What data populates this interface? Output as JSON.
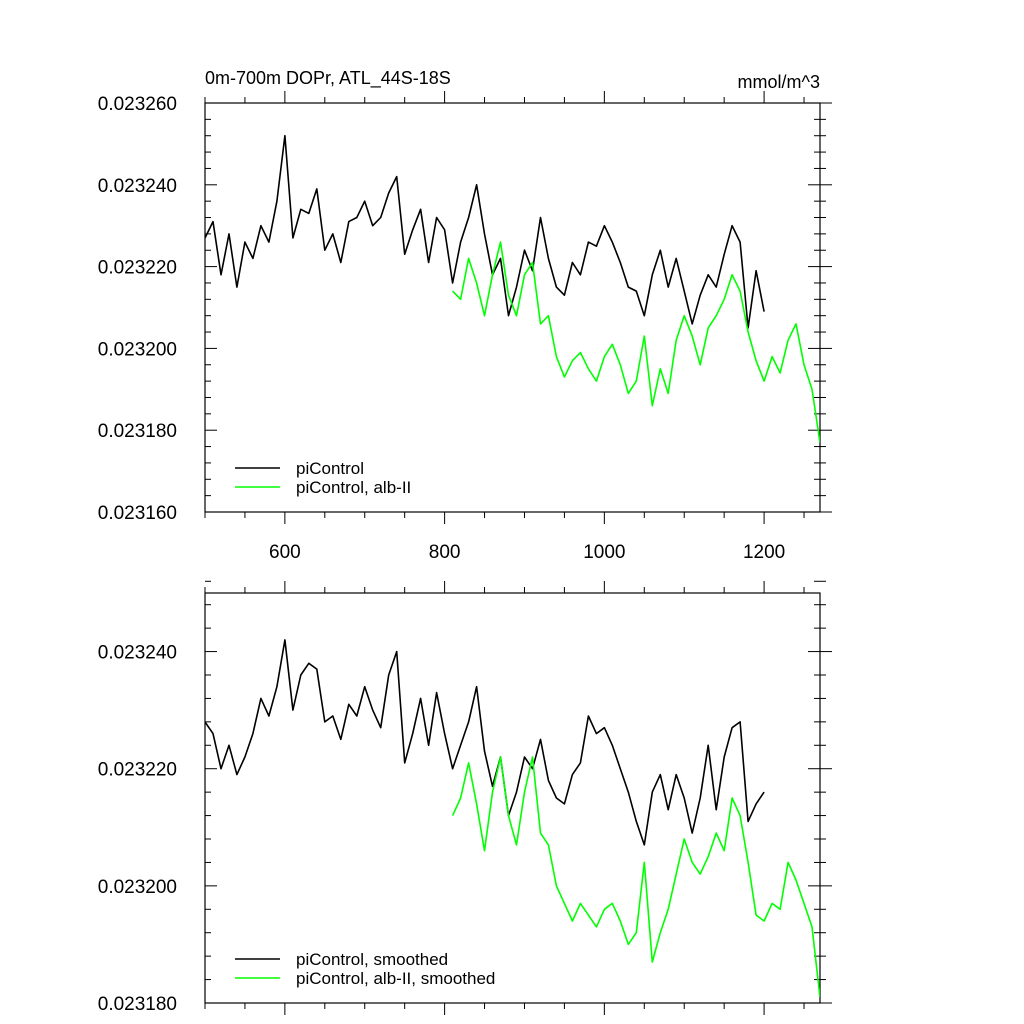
{
  "chart_data": [
    {
      "type": "line",
      "title": "0m-700m DOPr, ATL_44S-18S",
      "units": "mmol/m^3",
      "xlim": [
        500,
        1270
      ],
      "ylim": [
        0.02316,
        0.02326
      ],
      "xticks": [
        600,
        800,
        1000,
        1200
      ],
      "xtick_labels": [
        "600",
        "800",
        "1000",
        "1200"
      ],
      "yticks": [
        0.02316,
        0.02318,
        0.0232,
        0.02322,
        0.02324,
        0.02326
      ],
      "ytick_labels": [
        "0.023160",
        "0.023180",
        "0.023200",
        "0.023220",
        "0.023240",
        "0.023260"
      ],
      "legend_position": "bottom-left",
      "series": [
        {
          "name": "piControl",
          "color": "#000000",
          "x": [
            500,
            510,
            520,
            530,
            540,
            550,
            560,
            570,
            580,
            590,
            600,
            610,
            620,
            630,
            640,
            650,
            660,
            670,
            680,
            690,
            700,
            710,
            720,
            730,
            740,
            750,
            760,
            770,
            780,
            790,
            800,
            810,
            820,
            830,
            840,
            850,
            860,
            870,
            880,
            890,
            900,
            910,
            920,
            930,
            940,
            950,
            960,
            970,
            980,
            990,
            1000,
            1010,
            1020,
            1030,
            1040,
            1050,
            1060,
            1070,
            1080,
            1090,
            1100,
            1110,
            1120,
            1130,
            1140,
            1150,
            1160,
            1170,
            1180,
            1190,
            1200
          ],
          "y": [
            0.023227,
            0.023231,
            0.023218,
            0.023228,
            0.023215,
            0.023226,
            0.023222,
            0.02323,
            0.023226,
            0.023236,
            0.023252,
            0.023227,
            0.023234,
            0.023233,
            0.023239,
            0.023224,
            0.023228,
            0.023221,
            0.023231,
            0.023232,
            0.023236,
            0.02323,
            0.023232,
            0.023238,
            0.023242,
            0.023223,
            0.023229,
            0.023234,
            0.023221,
            0.023232,
            0.023229,
            0.023216,
            0.023226,
            0.023232,
            0.02324,
            0.023228,
            0.023218,
            0.023222,
            0.023208,
            0.023215,
            0.023224,
            0.023219,
            0.023232,
            0.023222,
            0.023215,
            0.023213,
            0.023221,
            0.023218,
            0.023226,
            0.023225,
            0.02323,
            0.023226,
            0.023221,
            0.023215,
            0.023214,
            0.023208,
            0.023218,
            0.023224,
            0.023215,
            0.023222,
            0.023214,
            0.023206,
            0.023213,
            0.023218,
            0.023215,
            0.023223,
            0.02323,
            0.023226,
            0.023205,
            0.023219,
            0.023209
          ]
        },
        {
          "name": "piControl, alb-II",
          "color": "#00ff00",
          "x": [
            810,
            820,
            830,
            840,
            850,
            860,
            870,
            880,
            890,
            900,
            910,
            920,
            930,
            940,
            950,
            960,
            970,
            980,
            990,
            1000,
            1010,
            1020,
            1030,
            1040,
            1050,
            1060,
            1070,
            1080,
            1090,
            1100,
            1110,
            1120,
            1130,
            1140,
            1150,
            1160,
            1170,
            1180,
            1190,
            1200,
            1210,
            1220,
            1230,
            1240,
            1250,
            1260,
            1270
          ],
          "y": [
            0.023214,
            0.023212,
            0.023222,
            0.023216,
            0.023208,
            0.023218,
            0.023226,
            0.023213,
            0.023208,
            0.023218,
            0.023221,
            0.023206,
            0.023208,
            0.023198,
            0.023193,
            0.023197,
            0.023199,
            0.023195,
            0.023192,
            0.023198,
            0.023201,
            0.023196,
            0.023189,
            0.023192,
            0.023203,
            0.023186,
            0.023195,
            0.023189,
            0.023202,
            0.023208,
            0.023203,
            0.023196,
            0.023205,
            0.023208,
            0.023212,
            0.023218,
            0.023214,
            0.023204,
            0.023197,
            0.023192,
            0.023198,
            0.023194,
            0.023202,
            0.023206,
            0.023196,
            0.02319,
            0.023177
          ]
        }
      ]
    },
    {
      "type": "line",
      "xlim": [
        500,
        1270
      ],
      "ylim": [
        0.02318,
        0.02325
      ],
      "xticks": [
        600,
        800,
        1000,
        1200
      ],
      "yticks": [
        0.02318,
        0.0232,
        0.02322,
        0.02324
      ],
      "ytick_labels": [
        "0.023180",
        "0.023200",
        "0.023220",
        "0.023240"
      ],
      "legend_position": "bottom-left",
      "series": [
        {
          "name": "piControl, smoothed",
          "color": "#000000",
          "x": [
            500,
            510,
            520,
            530,
            540,
            550,
            560,
            570,
            580,
            590,
            600,
            610,
            620,
            630,
            640,
            650,
            660,
            670,
            680,
            690,
            700,
            710,
            720,
            730,
            740,
            750,
            760,
            770,
            780,
            790,
            800,
            810,
            820,
            830,
            840,
            850,
            860,
            870,
            880,
            890,
            900,
            910,
            920,
            930,
            940,
            950,
            960,
            970,
            980,
            990,
            1000,
            1010,
            1020,
            1030,
            1040,
            1050,
            1060,
            1070,
            1080,
            1090,
            1100,
            1110,
            1120,
            1130,
            1140,
            1150,
            1160,
            1170,
            1180,
            1190,
            1200
          ],
          "y": [
            0.023228,
            0.023226,
            0.02322,
            0.023224,
            0.023219,
            0.023222,
            0.023226,
            0.023232,
            0.023229,
            0.023234,
            0.023242,
            0.02323,
            0.023236,
            0.023238,
            0.023237,
            0.023228,
            0.023229,
            0.023225,
            0.023231,
            0.023229,
            0.023234,
            0.02323,
            0.023227,
            0.023236,
            0.02324,
            0.023221,
            0.023226,
            0.023232,
            0.023224,
            0.023233,
            0.023226,
            0.02322,
            0.023224,
            0.023228,
            0.023234,
            0.023223,
            0.023217,
            0.023222,
            0.023212,
            0.023216,
            0.023222,
            0.02322,
            0.023225,
            0.023218,
            0.023215,
            0.023214,
            0.023219,
            0.023221,
            0.023229,
            0.023226,
            0.023227,
            0.023224,
            0.02322,
            0.023216,
            0.023211,
            0.023207,
            0.023216,
            0.023219,
            0.023213,
            0.023219,
            0.023215,
            0.023209,
            0.023215,
            0.023224,
            0.023213,
            0.023222,
            0.023227,
            0.023228,
            0.023211,
            0.023214,
            0.023216
          ]
        },
        {
          "name": "piControl, alb-II, smoothed",
          "color": "#00ff00",
          "x": [
            810,
            820,
            830,
            840,
            850,
            860,
            870,
            880,
            890,
            900,
            910,
            920,
            930,
            940,
            950,
            960,
            970,
            980,
            990,
            1000,
            1010,
            1020,
            1030,
            1040,
            1050,
            1060,
            1070,
            1080,
            1090,
            1100,
            1110,
            1120,
            1130,
            1140,
            1150,
            1160,
            1170,
            1180,
            1190,
            1200,
            1210,
            1220,
            1230,
            1240,
            1250,
            1260,
            1270
          ],
          "y": [
            0.023212,
            0.023215,
            0.023221,
            0.023214,
            0.023206,
            0.023216,
            0.023222,
            0.023212,
            0.023207,
            0.023216,
            0.023222,
            0.023209,
            0.023207,
            0.0232,
            0.023197,
            0.023194,
            0.023197,
            0.023195,
            0.023193,
            0.023196,
            0.023197,
            0.023194,
            0.02319,
            0.023192,
            0.023204,
            0.023187,
            0.023192,
            0.023196,
            0.023202,
            0.023208,
            0.023204,
            0.023202,
            0.023205,
            0.023209,
            0.023206,
            0.023215,
            0.023212,
            0.023204,
            0.023195,
            0.023194,
            0.023197,
            0.023196,
            0.023204,
            0.023201,
            0.023197,
            0.023193,
            0.023181
          ]
        }
      ]
    }
  ]
}
